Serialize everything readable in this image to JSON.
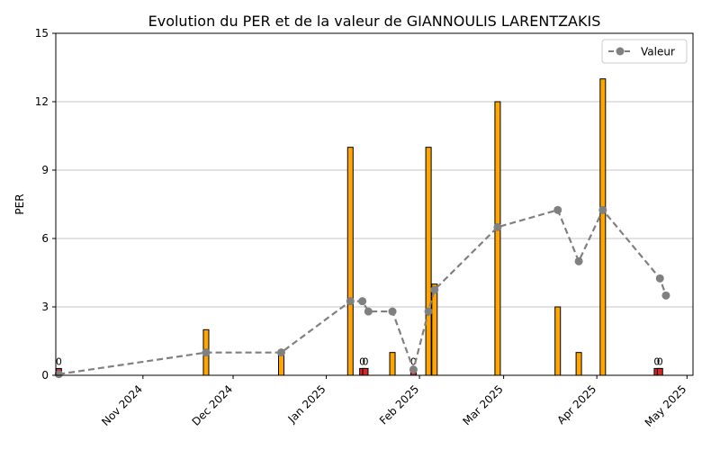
{
  "chart_data": {
    "type": "bar",
    "title": "Evolution du PER et de la valeur de GIANNOULIS LARENTZAKIS",
    "xlabel": "",
    "ylabel": "PER",
    "ylim": [
      0,
      15
    ],
    "yticks": [
      "0",
      "3",
      "6",
      "9",
      "12",
      "15"
    ],
    "xlim": [
      "2024-10-03",
      "2025-05-03"
    ],
    "xticks": [
      {
        "date": "2024-11-01",
        "label": "Nov 2024"
      },
      {
        "date": "2024-12-01",
        "label": "Dec 2024"
      },
      {
        "date": "2025-01-01",
        "label": "Jan 2025"
      },
      {
        "date": "2025-02-01",
        "label": "Feb 2025"
      },
      {
        "date": "2025-03-01",
        "label": "Mar 2025"
      },
      {
        "date": "2025-04-01",
        "label": "Apr 2025"
      },
      {
        "date": "2025-05-01",
        "label": "May 2025"
      }
    ],
    "grid": "y",
    "legend": {
      "position": "top-right",
      "entries": [
        "Valeur"
      ]
    },
    "bars": [
      {
        "date": "2024-10-04",
        "value": 0.3,
        "color": "#d62728",
        "label": "0"
      },
      {
        "date": "2024-11-22",
        "value": 2,
        "color": "#ffa500",
        "label": ""
      },
      {
        "date": "2024-12-17",
        "value": 1,
        "color": "#ffa500",
        "label": ""
      },
      {
        "date": "2025-01-09",
        "value": 10,
        "color": "#ffa500",
        "label": ""
      },
      {
        "date": "2025-01-13",
        "value": 0.3,
        "color": "#d62728",
        "label": "0"
      },
      {
        "date": "2025-01-14",
        "value": 0.3,
        "color": "#d62728",
        "label": "0"
      },
      {
        "date": "2025-01-23",
        "value": 1,
        "color": "#ffa500",
        "label": ""
      },
      {
        "date": "2025-01-30",
        "value": 0.3,
        "color": "#d62728",
        "label": "0"
      },
      {
        "date": "2025-02-04",
        "value": 10,
        "color": "#ffa500",
        "label": ""
      },
      {
        "date": "2025-02-06",
        "value": 4,
        "color": "#ffa500",
        "label": ""
      },
      {
        "date": "2025-02-27",
        "value": 12,
        "color": "#ffa500",
        "label": ""
      },
      {
        "date": "2025-03-19",
        "value": 3,
        "color": "#ffa500",
        "label": ""
      },
      {
        "date": "2025-03-26",
        "value": 1,
        "color": "#ffa500",
        "label": ""
      },
      {
        "date": "2025-04-03",
        "value": 13,
        "color": "#ffa500",
        "label": ""
      },
      {
        "date": "2025-04-21",
        "value": 0.3,
        "color": "#d62728",
        "label": "0"
      },
      {
        "date": "2025-04-22",
        "value": 0.3,
        "color": "#d62728",
        "label": "0"
      }
    ],
    "series": [
      {
        "name": "Valeur",
        "color": "#808080",
        "style": "dashed",
        "marker": "circle",
        "points": [
          {
            "date": "2024-10-04",
            "value": 0.05
          },
          {
            "date": "2024-11-22",
            "value": 1.0
          },
          {
            "date": "2024-12-17",
            "value": 1.0
          },
          {
            "date": "2025-01-09",
            "value": 3.25
          },
          {
            "date": "2025-01-13",
            "value": 3.25
          },
          {
            "date": "2025-01-15",
            "value": 2.8
          },
          {
            "date": "2025-01-23",
            "value": 2.8
          },
          {
            "date": "2025-01-30",
            "value": 0.25
          },
          {
            "date": "2025-02-04",
            "value": 2.8
          },
          {
            "date": "2025-02-06",
            "value": 3.75
          },
          {
            "date": "2025-02-27",
            "value": 6.5
          },
          {
            "date": "2025-03-19",
            "value": 7.25
          },
          {
            "date": "2025-03-26",
            "value": 5.0
          },
          {
            "date": "2025-04-03",
            "value": 7.25
          },
          {
            "date": "2025-04-22",
            "value": 4.25
          },
          {
            "date": "2025-04-24",
            "value": 3.5
          }
        ]
      }
    ]
  }
}
